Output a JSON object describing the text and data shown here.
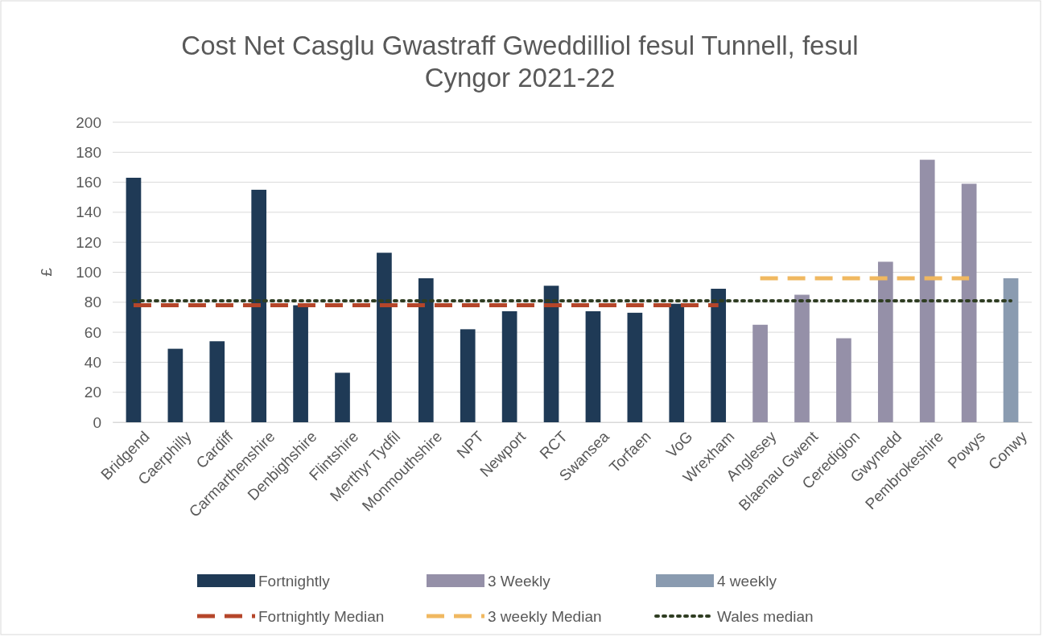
{
  "chart_data": {
    "type": "bar",
    "title": "Cost Net Casglu Gwastraff Gweddilliol fesul Tunnell, fesul Cyngor 2021-22",
    "ylabel": "£",
    "categories": [
      "Bridgend",
      "Caerphilly",
      "Cardiff",
      "Carmarthenshire",
      "Denbighshire",
      "Flintshire",
      "Merthyr Tydfil",
      "Monmouthshire",
      "NPT",
      "Newport",
      "RCT",
      "Swansea",
      "Torfaen",
      "VoG",
      "Wrexham",
      "Anglesey",
      "Blaenau Gwent",
      "Ceredigion",
      "Gwynedd",
      "Pembrokeshire",
      "Powys",
      "Conwy"
    ],
    "series": [
      {
        "name": "Fortnightly",
        "color": "#1f3a56",
        "values": [
          163,
          49,
          54,
          155,
          78,
          33,
          113,
          96,
          62,
          74,
          91,
          74,
          73,
          79,
          89,
          null,
          null,
          null,
          null,
          null,
          null,
          null
        ]
      },
      {
        "name": "3 Weekly",
        "color": "#9590a8",
        "values": [
          null,
          null,
          null,
          null,
          null,
          null,
          null,
          null,
          null,
          null,
          null,
          null,
          null,
          null,
          null,
          65,
          85,
          56,
          107,
          175,
          159,
          null
        ]
      },
      {
        "name": "4 weekly",
        "color": "#8a9bb0",
        "values": [
          null,
          null,
          null,
          null,
          null,
          null,
          null,
          null,
          null,
          null,
          null,
          null,
          null,
          null,
          null,
          null,
          null,
          null,
          null,
          null,
          null,
          96
        ]
      },
      {
        "name": "Fortnightly Median",
        "type": "line",
        "line_style": "dashed",
        "color": "#b5462a",
        "values": [
          78,
          78,
          78,
          78,
          78,
          78,
          78,
          78,
          78,
          78,
          78,
          78,
          78,
          78,
          78,
          null,
          null,
          null,
          null,
          null,
          null,
          null
        ]
      },
      {
        "name": "3 weekly Median",
        "type": "line",
        "line_style": "dashed",
        "color": "#f0b860",
        "values": [
          null,
          null,
          null,
          null,
          null,
          null,
          null,
          null,
          null,
          null,
          null,
          null,
          null,
          null,
          null,
          96,
          96,
          96,
          96,
          96,
          96,
          null
        ]
      },
      {
        "name": "Wales median",
        "type": "line",
        "line_style": "dotted",
        "color": "#2f3d22",
        "values": [
          81,
          81,
          81,
          81,
          81,
          81,
          81,
          81,
          81,
          81,
          81,
          81,
          81,
          81,
          81,
          81,
          81,
          81,
          81,
          81,
          81,
          81
        ]
      }
    ],
    "ylim": [
      0,
      200
    ],
    "yticks": [
      0,
      20,
      40,
      60,
      80,
      100,
      120,
      140,
      160,
      180,
      200
    ],
    "grid": "y",
    "legend": "bottom"
  }
}
